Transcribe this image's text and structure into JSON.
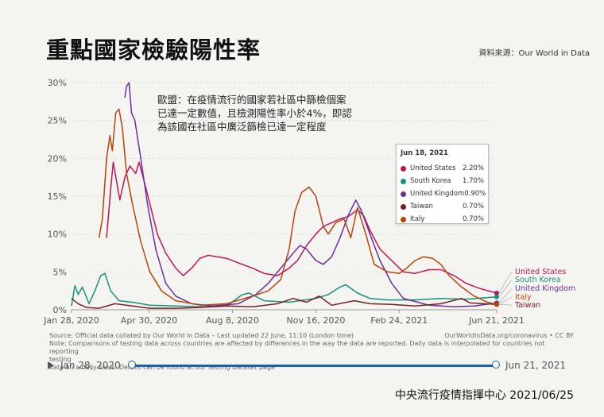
{
  "header": {
    "title": "重點國家檢驗陽性率",
    "source": "資料來源：Our World in Data"
  },
  "annotation": {
    "lines": [
      "歐盟：在疫情流行的國家若社區中篩檢個案",
      "已達一定數值，且檢測陽性率小於4%，即認",
      "為該國在社區中廣泛篩檢已達一定程度"
    ]
  },
  "tooltip": {
    "date": "Jun 18, 2021",
    "rows": [
      {
        "name": "United States",
        "value": "2.20%",
        "color": "#c0145a"
      },
      {
        "name": "South Korea",
        "value": "1.70%",
        "color": "#17917f"
      },
      {
        "name": "United Kingdom",
        "value": "0.90%",
        "color": "#6a2ea0"
      },
      {
        "name": "Taiwan",
        "value": "0.70%",
        "color": "#7a1f1f"
      },
      {
        "name": "Italy",
        "value": "0.70%",
        "color": "#b8440c"
      }
    ]
  },
  "footer": {
    "source_note": "Source: Official data collated by Our World in Data – Last updated 22 June, 11:10 (London time)",
    "url_note": "OurWorldInData.org/coronavirus • CC BY",
    "note_lines": [
      "Note: Comparisons of testing data across countries are affected by differences in the way the data are reported. Daily data is interpolated for countries not reporting",
      "testing",
      "data on a daily basis. Details can be found at our Testing Dataset page"
    ]
  },
  "timeline": {
    "start": "Jan 28, 2020",
    "end": "Jun 21, 2021"
  },
  "credit": "中央流行疫情指揮中心 2021/06/25",
  "chart_data": {
    "type": "line",
    "x_unit": "date",
    "xlim": [
      "2020-01-28",
      "2021-06-21"
    ],
    "ylim": [
      0,
      30
    ],
    "y_unit": "%",
    "y_ticks": [
      "0%",
      "5%",
      "10%",
      "15%",
      "20%",
      "25%",
      "30%"
    ],
    "x_ticks": [
      "Jan 28, 2020",
      "Apr 30, 2020",
      "Aug 8, 2020",
      "Nov 16, 2020",
      "Feb 24, 2021",
      "Jun 21, 2021"
    ],
    "x_tick_dates": [
      "2020-01-28",
      "2020-04-30",
      "2020-08-08",
      "2020-11-16",
      "2021-02-24",
      "2021-06-21"
    ],
    "grid": true,
    "legend": "right-end labels",
    "series": [
      {
        "name": "United States",
        "color": "#c0145a",
        "points": [
          [
            "2020-03-10",
            9.5
          ],
          [
            "2020-03-15",
            16
          ],
          [
            "2020-03-18",
            19.5
          ],
          [
            "2020-03-22",
            17
          ],
          [
            "2020-03-26",
            14.5
          ],
          [
            "2020-04-01",
            17.5
          ],
          [
            "2020-04-07",
            19
          ],
          [
            "2020-04-14",
            18
          ],
          [
            "2020-04-18",
            19.5
          ],
          [
            "2020-04-24",
            17
          ],
          [
            "2020-05-01",
            14
          ],
          [
            "2020-05-10",
            10
          ],
          [
            "2020-05-20",
            7.5
          ],
          [
            "2020-06-01",
            5.5
          ],
          [
            "2020-06-10",
            4.5
          ],
          [
            "2020-06-20",
            5.5
          ],
          [
            "2020-06-30",
            6.8
          ],
          [
            "2020-07-10",
            7.2
          ],
          [
            "2020-07-20",
            7.0
          ],
          [
            "2020-08-01",
            6.8
          ],
          [
            "2020-08-15",
            6.2
          ],
          [
            "2020-09-01",
            5.5
          ],
          [
            "2020-09-15",
            4.8
          ],
          [
            "2020-10-01",
            4.5
          ],
          [
            "2020-10-15",
            5.5
          ],
          [
            "2020-10-25",
            6.5
          ],
          [
            "2020-11-05",
            8.5
          ],
          [
            "2020-11-16",
            10.0
          ],
          [
            "2020-11-25",
            11.0
          ],
          [
            "2020-12-05",
            11.5
          ],
          [
            "2020-12-15",
            12.0
          ],
          [
            "2020-12-25",
            12.3
          ],
          [
            "2021-01-05",
            13.2
          ],
          [
            "2021-01-12",
            12.5
          ],
          [
            "2021-01-20",
            10.5
          ],
          [
            "2021-02-01",
            8.0
          ],
          [
            "2021-02-15",
            6.5
          ],
          [
            "2021-03-01",
            5.0
          ],
          [
            "2021-03-15",
            4.8
          ],
          [
            "2021-04-01",
            5.3
          ],
          [
            "2021-04-15",
            5.3
          ],
          [
            "2021-05-01",
            4.5
          ],
          [
            "2021-05-15",
            3.5
          ],
          [
            "2021-06-01",
            2.8
          ],
          [
            "2021-06-21",
            2.2
          ]
        ]
      },
      {
        "name": "South Korea",
        "color": "#17917f",
        "points": [
          [
            "2020-01-28",
            0.5
          ],
          [
            "2020-02-01",
            3.2
          ],
          [
            "2020-02-05",
            2.0
          ],
          [
            "2020-02-10",
            3.0
          ],
          [
            "2020-02-18",
            0.8
          ],
          [
            "2020-02-25",
            2.5
          ],
          [
            "2020-03-03",
            4.5
          ],
          [
            "2020-03-08",
            4.8
          ],
          [
            "2020-03-15",
            2.5
          ],
          [
            "2020-03-25",
            1.2
          ],
          [
            "2020-04-10",
            1.0
          ],
          [
            "2020-05-01",
            0.6
          ],
          [
            "2020-06-01",
            0.5
          ],
          [
            "2020-07-01",
            0.4
          ],
          [
            "2020-08-01",
            0.5
          ],
          [
            "2020-08-20",
            2.0
          ],
          [
            "2020-08-28",
            2.2
          ],
          [
            "2020-09-15",
            1.2
          ],
          [
            "2020-10-15",
            1.0
          ],
          [
            "2020-11-16",
            1.5
          ],
          [
            "2020-12-01",
            2.0
          ],
          [
            "2020-12-15",
            3.0
          ],
          [
            "2020-12-22",
            3.3
          ],
          [
            "2021-01-05",
            2.2
          ],
          [
            "2021-01-20",
            1.5
          ],
          [
            "2021-02-10",
            1.3
          ],
          [
            "2021-03-15",
            1.3
          ],
          [
            "2021-04-15",
            1.5
          ],
          [
            "2021-05-15",
            1.4
          ],
          [
            "2021-06-21",
            1.7
          ]
        ]
      },
      {
        "name": "United Kingdom",
        "color": "#6a2ea0",
        "points": [
          [
            "2020-04-01",
            28
          ],
          [
            "2020-04-03",
            29.5
          ],
          [
            "2020-04-06",
            30
          ],
          [
            "2020-04-09",
            26
          ],
          [
            "2020-04-13",
            25
          ],
          [
            "2020-04-20",
            20
          ],
          [
            "2020-04-28",
            14
          ],
          [
            "2020-05-08",
            8
          ],
          [
            "2020-05-20",
            3.5
          ],
          [
            "2020-06-01",
            1.8
          ],
          [
            "2020-06-20",
            0.8
          ],
          [
            "2020-07-15",
            0.5
          ],
          [
            "2020-08-15",
            0.8
          ],
          [
            "2020-09-05",
            2.0
          ],
          [
            "2020-09-20",
            3.5
          ],
          [
            "2020-10-05",
            5.5
          ],
          [
            "2020-10-20",
            7.5
          ],
          [
            "2020-10-28",
            8.5
          ],
          [
            "2020-11-05",
            8.0
          ],
          [
            "2020-11-16",
            6.5
          ],
          [
            "2020-11-25",
            6.0
          ],
          [
            "2020-12-05",
            7.0
          ],
          [
            "2020-12-15",
            9.5
          ],
          [
            "2020-12-25",
            12.5
          ],
          [
            "2021-01-03",
            14.5
          ],
          [
            "2021-01-10",
            13.0
          ],
          [
            "2021-01-20",
            10.0
          ],
          [
            "2021-02-01",
            6.5
          ],
          [
            "2021-02-15",
            3.5
          ],
          [
            "2021-03-01",
            1.5
          ],
          [
            "2021-04-01",
            0.6
          ],
          [
            "2021-05-01",
            0.4
          ],
          [
            "2021-05-25",
            0.5
          ],
          [
            "2021-06-21",
            0.9
          ]
        ]
      },
      {
        "name": "Taiwan",
        "color": "#7a1f1f",
        "points": [
          [
            "2020-01-28",
            1.5
          ],
          [
            "2020-02-05",
            0.8
          ],
          [
            "2020-02-15",
            0.3
          ],
          [
            "2020-03-01",
            0.2
          ],
          [
            "2020-03-20",
            0.8
          ],
          [
            "2020-04-10",
            0.5
          ],
          [
            "2020-05-01",
            0.2
          ],
          [
            "2020-06-01",
            0.2
          ],
          [
            "2020-07-01",
            0.3
          ],
          [
            "2020-08-01",
            0.5
          ],
          [
            "2020-09-01",
            0.4
          ],
          [
            "2020-10-01",
            0.8
          ],
          [
            "2020-10-20",
            1.5
          ],
          [
            "2020-11-05",
            1.0
          ],
          [
            "2020-11-20",
            1.8
          ],
          [
            "2020-12-05",
            0.6
          ],
          [
            "2021-01-01",
            1.2
          ],
          [
            "2021-01-20",
            0.8
          ],
          [
            "2021-02-15",
            0.7
          ],
          [
            "2021-03-15",
            0.5
          ],
          [
            "2021-04-15",
            0.8
          ],
          [
            "2021-05-10",
            1.5
          ],
          [
            "2021-05-20",
            0.9
          ],
          [
            "2021-06-21",
            0.7
          ]
        ]
      },
      {
        "name": "Italy",
        "color": "#b8440c",
        "points": [
          [
            "2020-03-01",
            9.5
          ],
          [
            "2020-03-05",
            12
          ],
          [
            "2020-03-10",
            20
          ],
          [
            "2020-03-14",
            23
          ],
          [
            "2020-03-17",
            21
          ],
          [
            "2020-03-21",
            26
          ],
          [
            "2020-03-25",
            26.5
          ],
          [
            "2020-03-29",
            24
          ],
          [
            "2020-04-03",
            18
          ],
          [
            "2020-04-10",
            14
          ],
          [
            "2020-04-20",
            9
          ],
          [
            "2020-05-01",
            5
          ],
          [
            "2020-05-15",
            2.5
          ],
          [
            "2020-06-01",
            1.2
          ],
          [
            "2020-07-01",
            0.6
          ],
          [
            "2020-08-01",
            0.8
          ],
          [
            "2020-09-01",
            1.8
          ],
          [
            "2020-09-20",
            2.5
          ],
          [
            "2020-10-05",
            4.0
          ],
          [
            "2020-10-15",
            8.0
          ],
          [
            "2020-10-22",
            13.0
          ],
          [
            "2020-10-30",
            15.5
          ],
          [
            "2020-11-08",
            16.2
          ],
          [
            "2020-11-16",
            15.0
          ],
          [
            "2020-11-25",
            11.0
          ],
          [
            "2020-12-01",
            10.0
          ],
          [
            "2020-12-10",
            11.5
          ],
          [
            "2020-12-20",
            12.0
          ],
          [
            "2020-12-28",
            9.5
          ],
          [
            "2021-01-05",
            13.5
          ],
          [
            "2021-01-15",
            10.0
          ],
          [
            "2021-01-25",
            6.0
          ],
          [
            "2021-02-10",
            5.0
          ],
          [
            "2021-02-24",
            4.8
          ],
          [
            "2021-03-05",
            5.5
          ],
          [
            "2021-03-15",
            6.5
          ],
          [
            "2021-03-25",
            7.0
          ],
          [
            "2021-04-05",
            6.8
          ],
          [
            "2021-04-15",
            6.0
          ],
          [
            "2021-04-25",
            4.5
          ],
          [
            "2021-05-10",
            3.0
          ],
          [
            "2021-05-25",
            1.8
          ],
          [
            "2021-06-10",
            1.0
          ],
          [
            "2021-06-21",
            0.7
          ]
        ]
      }
    ]
  }
}
